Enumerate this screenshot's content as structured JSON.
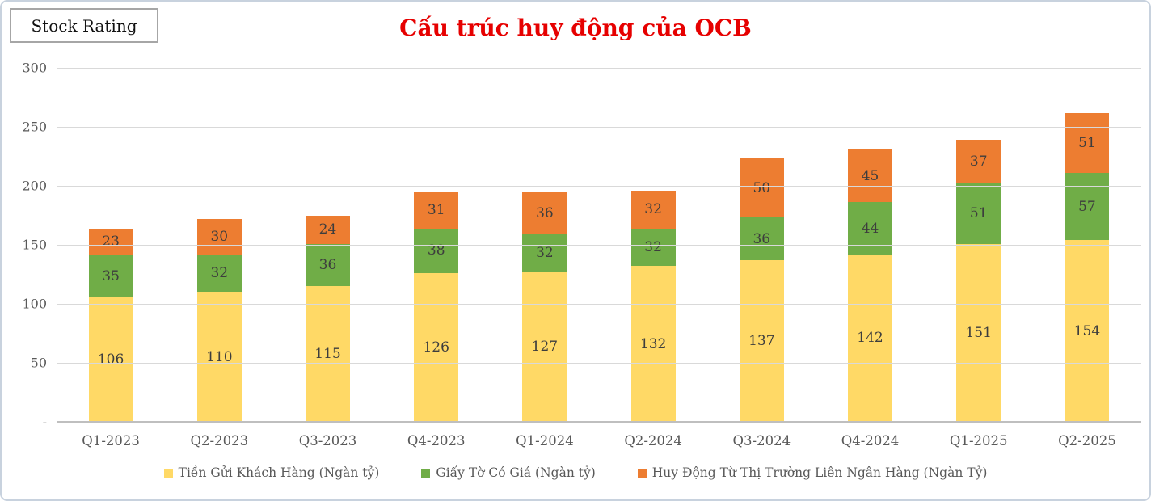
{
  "badge": {
    "label": "Stock Rating"
  },
  "chart_data": {
    "type": "bar",
    "stacked": true,
    "title": "Cấu trúc huy động của OCB",
    "categories": [
      "Q1-2023",
      "Q2-2023",
      "Q3-2023",
      "Q4-2023",
      "Q1-2024",
      "Q2-2024",
      "Q3-2024",
      "Q4-2024",
      "Q1-2025",
      "Q2-2025"
    ],
    "series": [
      {
        "name": "Tiền Gửi Khách Hàng (Ngàn tỷ)",
        "color": "#FFD966",
        "values": [
          106,
          110,
          115,
          126,
          127,
          132,
          137,
          142,
          151,
          154
        ]
      },
      {
        "name": "Giấy Tờ Có Giá (Ngàn tỷ)",
        "color": "#70AD47",
        "values": [
          35,
          32,
          36,
          38,
          32,
          32,
          36,
          44,
          51,
          57
        ]
      },
      {
        "name": "Huy Động Từ Thị Trường Liên Ngân Hàng (Ngàn Tỷ)",
        "color": "#ED7D31",
        "values": [
          23,
          30,
          24,
          31,
          36,
          32,
          50,
          45,
          37,
          51
        ]
      }
    ],
    "ylim": [
      0,
      300
    ],
    "y_ticks": [
      {
        "value": 0,
        "label": "-"
      },
      {
        "value": 50,
        "label": "50"
      },
      {
        "value": 100,
        "label": "100"
      },
      {
        "value": 150,
        "label": "150"
      },
      {
        "value": 200,
        "label": "200"
      },
      {
        "value": 250,
        "label": "250"
      },
      {
        "value": 300,
        "label": "300"
      }
    ],
    "grid": true,
    "legend_position": "bottom"
  },
  "colors": {
    "title": "#e60000",
    "axis_text": "#595959",
    "data_label": "#3d3d3d",
    "gridline": "#d9d9d9",
    "axis_line": "#bfbfbf",
    "frame_border": "#c8d2de",
    "badge_border": "#a6a6a6"
  }
}
